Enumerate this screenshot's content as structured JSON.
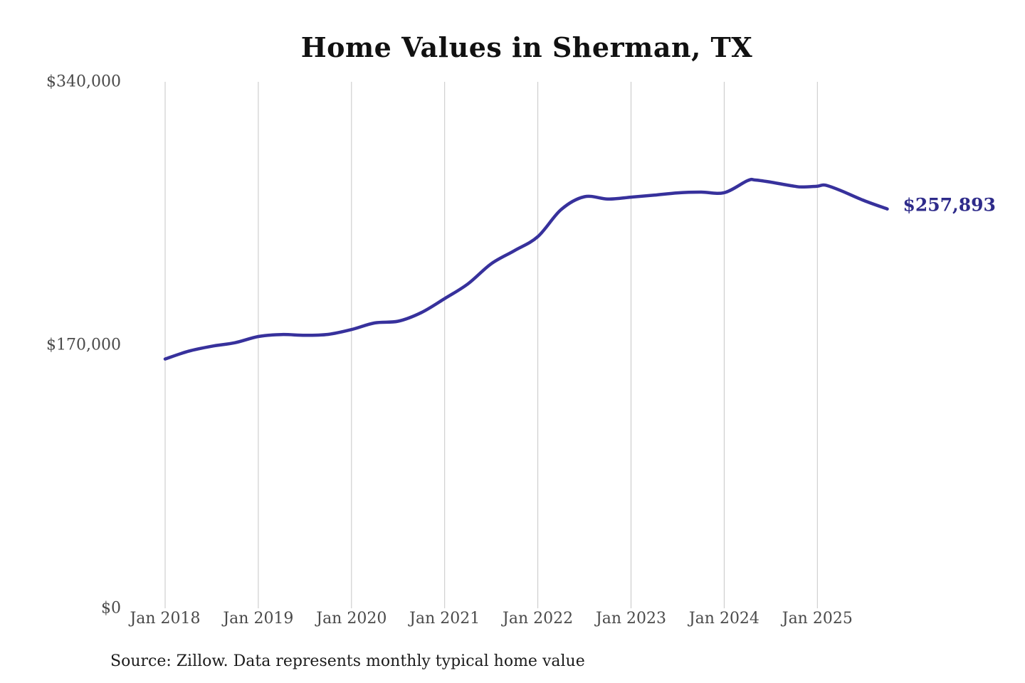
{
  "title": "Home Values in Sherman, TX",
  "source": "Source: Zillow. Data represents monthly typical home value",
  "colors": {
    "line": "#37319c",
    "end_label": "#2e2b8a",
    "grid": "#c6c6c6",
    "tick_text": "#4a4a4a",
    "title_text": "#111111",
    "source_text": "#1c1c1c",
    "background": "#ffffff"
  },
  "chart_data": {
    "type": "line",
    "title": "Home Values in Sherman, TX",
    "xlabel": "",
    "ylabel": "",
    "ylim": [
      0,
      340000
    ],
    "grid": "vertical-only",
    "legend": "none",
    "x_ticks": [
      "Jan 2018",
      "Jan 2019",
      "Jan 2020",
      "Jan 2021",
      "Jan 2022",
      "Jan 2023",
      "Jan 2024",
      "Jan 2025"
    ],
    "y_ticks": [
      {
        "label": "$0",
        "value": 0
      },
      {
        "label": "$170,000",
        "value": 170000
      },
      {
        "label": "$340,000",
        "value": 340000
      }
    ],
    "end_label": "$257,893",
    "series": [
      {
        "name": "Monthly typical home value",
        "points": [
          [
            "2018-01",
            161000
          ],
          [
            "2018-04",
            166000
          ],
          [
            "2018-07",
            169200
          ],
          [
            "2018-10",
            171500
          ],
          [
            "2019-01",
            175500
          ],
          [
            "2019-04",
            176800
          ],
          [
            "2019-07",
            176300
          ],
          [
            "2019-10",
            176900
          ],
          [
            "2020-01",
            180000
          ],
          [
            "2020-04",
            184300
          ],
          [
            "2020-07",
            185400
          ],
          [
            "2020-10",
            191000
          ],
          [
            "2021-01",
            200000
          ],
          [
            "2021-04",
            209500
          ],
          [
            "2021-07",
            222500
          ],
          [
            "2021-10",
            231000
          ],
          [
            "2022-01",
            240000
          ],
          [
            "2022-04",
            257500
          ],
          [
            "2022-07",
            265800
          ],
          [
            "2022-10",
            264300
          ],
          [
            "2023-01",
            265500
          ],
          [
            "2023-04",
            266800
          ],
          [
            "2023-07",
            268300
          ],
          [
            "2023-10",
            268800
          ],
          [
            "2024-01",
            268400
          ],
          [
            "2024-04",
            276200
          ],
          [
            "2024-05",
            276600
          ],
          [
            "2024-07",
            275200
          ],
          [
            "2024-10",
            272600
          ],
          [
            "2024-11",
            272100
          ],
          [
            "2025-01",
            272600
          ],
          [
            "2025-02",
            273300
          ],
          [
            "2025-04",
            269800
          ],
          [
            "2025-07",
            263300
          ],
          [
            "2025-10",
            257893
          ]
        ]
      }
    ]
  }
}
